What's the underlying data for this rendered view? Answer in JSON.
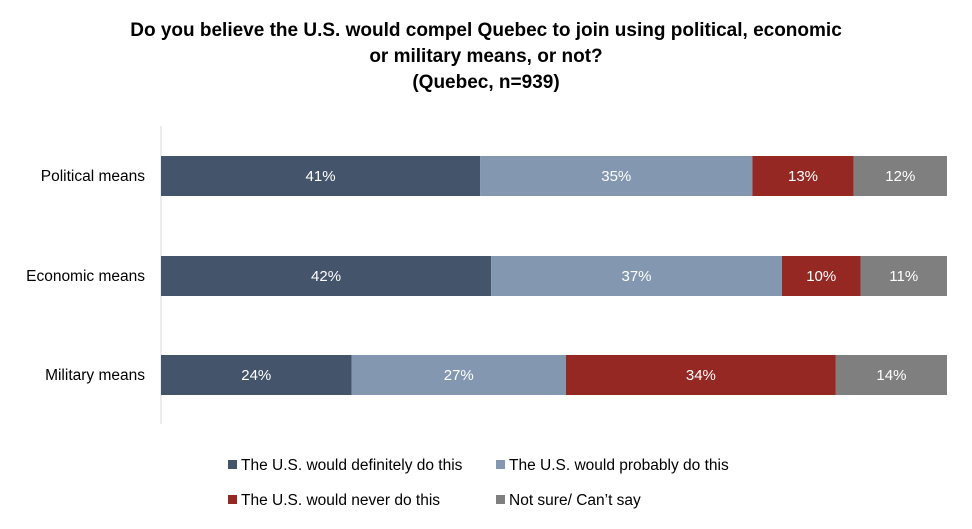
{
  "chart_data": {
    "type": "bar",
    "orientation": "horizontal",
    "stacked": true,
    "title_lines": [
      "Do you believe the U.S. would compel Quebec to join using political, economic",
      "or military means, or not?",
      "(Quebec, n=939)"
    ],
    "categories": [
      "Political means",
      "Economic means",
      "Military means"
    ],
    "series": [
      {
        "name": "The U.S. would definitely do this",
        "color": "#44546a",
        "values": [
          41,
          42,
          24
        ],
        "labels": [
          "41%",
          "42%",
          "24%"
        ]
      },
      {
        "name": "The U.S. would probably do this",
        "color": "#8497b0",
        "values": [
          35,
          37,
          27
        ],
        "labels": [
          "35%",
          "37%",
          "27%"
        ]
      },
      {
        "name": "The U.S. would never do this",
        "color": "#962824",
        "values": [
          13,
          10,
          34
        ],
        "labels": [
          "13%",
          "10%",
          "34%"
        ]
      },
      {
        "name": "Not sure/ Can’t say",
        "color": "#7f7f7f",
        "values": [
          12,
          11,
          14
        ],
        "labels": [
          "12%",
          "11%",
          "14%"
        ]
      }
    ],
    "xlim": [
      0,
      100
    ],
    "xlabel": "",
    "ylabel": "",
    "grid": false,
    "legend_position": "bottom"
  }
}
